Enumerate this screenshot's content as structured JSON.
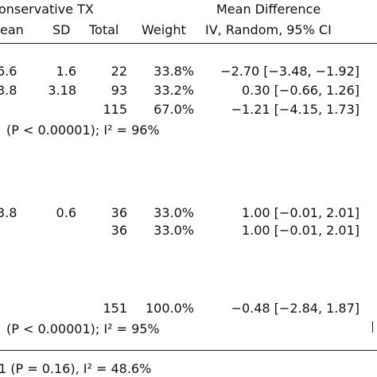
{
  "header": {
    "group": "onservative TX",
    "effect": "Mean Difference",
    "col_mean": "ean",
    "col_sd": "SD",
    "col_total": "Total",
    "col_weight": "Weight",
    "col_ci": "IV, Random, 95% CI"
  },
  "rows": [
    {
      "mean": "6.6",
      "sd": "1.6",
      "total": "22",
      "weight": "33.8%",
      "ci": "−2.70 [−3.48, −1.92]"
    },
    {
      "mean": "3.8",
      "sd": "3.18",
      "total": "93",
      "weight": "33.2%",
      "ci": "0.30 [−0.66, 1.26]"
    },
    {
      "mean": "",
      "sd": "",
      "total": "115",
      "weight": "67.0%",
      "ci": "−1.21 [−4.15, 1.73]"
    },
    {
      "mean": "3.8",
      "sd": "0.6",
      "total": "36",
      "weight": "33.0%",
      "ci": "1.00 [−0.01, 2.01]"
    },
    {
      "mean": "",
      "sd": "",
      "total": "36",
      "weight": "33.0%",
      "ci": "1.00 [−0.01, 2.01]"
    },
    {
      "mean": "",
      "sd": "",
      "total": "151",
      "weight": "100.0%",
      "ci": "−0.48 [−2.84, 1.87]"
    }
  ],
  "notes": {
    "het1": "(P < 0.00001); I² = 96%",
    "het2": "(P < 0.00001); I² = 95%",
    "subgroup": "1 (P = 0.16), I² = 48.6%"
  },
  "chart_data": {
    "type": "table",
    "columns": [
      "Mean",
      "SD",
      "Total",
      "Weight",
      "Mean Difference IV, Random, 95% CI"
    ],
    "rows": [
      [
        "6.6",
        "1.6",
        22,
        "33.8%",
        "−2.70 [−3.48, −1.92]"
      ],
      [
        "3.8",
        "3.18",
        93,
        "33.2%",
        "0.30 [−0.66, 1.26]"
      ],
      [
        "",
        "",
        115,
        "67.0%",
        "−1.21 [−4.15, 1.73]"
      ],
      [
        "3.8",
        "0.6",
        36,
        "33.0%",
        "1.00 [−0.01, 2.01]"
      ],
      [
        "",
        "",
        36,
        "33.0%",
        "1.00 [−0.01, 2.01]"
      ],
      [
        "",
        "",
        151,
        "100.0%",
        "−0.48 [−2.84, 1.87]"
      ]
    ]
  }
}
